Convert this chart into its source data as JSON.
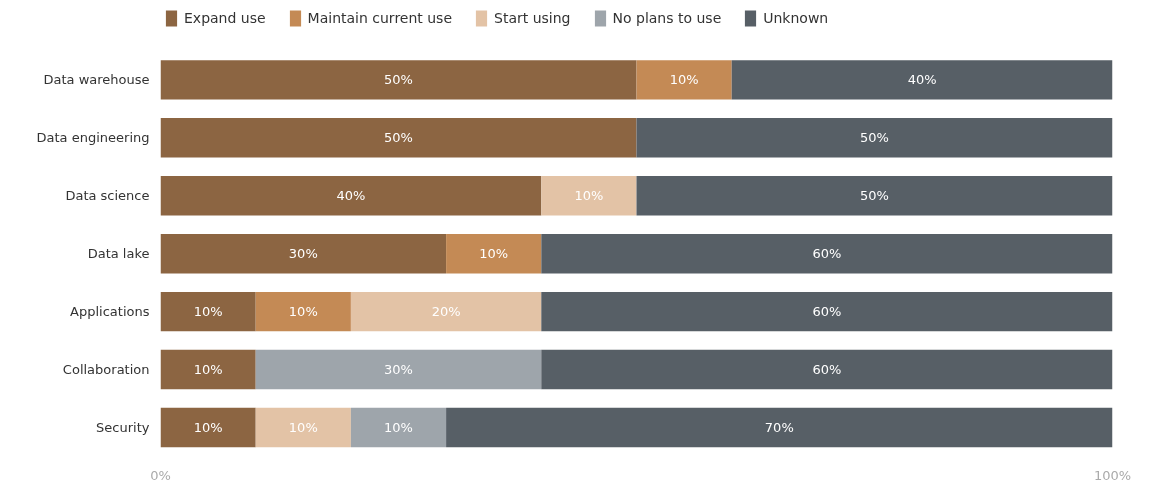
{
  "chart_data": {
    "type": "bar",
    "orientation": "horizontal",
    "stacked": true,
    "categories": [
      "Data warehouse",
      "Data engineering",
      "Data science",
      "Data lake",
      "Applications",
      "Collaboration",
      "Security"
    ],
    "series": [
      {
        "name": "Expand use",
        "color": "#8c6542",
        "values": [
          50,
          50,
          40,
          30,
          10,
          10,
          10
        ],
        "value_labels": [
          "50%",
          "50%",
          "40%",
          "30%",
          "10%",
          "10%",
          "10%"
        ]
      },
      {
        "name": "Maintain current use",
        "color": "#c48a55",
        "values": [
          10,
          0,
          0,
          10,
          10,
          0,
          0
        ],
        "value_labels": [
          "10%",
          null,
          null,
          "10%",
          "10%",
          null,
          null
        ]
      },
      {
        "name": "Start using",
        "color": "#e3c3a6",
        "values": [
          0,
          0,
          10,
          0,
          20,
          0,
          10
        ],
        "value_labels": [
          null,
          null,
          "10%",
          null,
          "20%",
          null,
          "10%"
        ]
      },
      {
        "name": "No plans to use",
        "color": "#9ea5ab",
        "values": [
          0,
          0,
          0,
          0,
          0,
          30,
          10
        ],
        "value_labels": [
          null,
          null,
          null,
          null,
          null,
          "30%",
          "10%"
        ]
      },
      {
        "name": "Unknown",
        "color": "#575f66",
        "values": [
          40,
          50,
          50,
          60,
          60,
          60,
          70
        ],
        "value_labels": [
          "40%",
          "50%",
          "50%",
          "60%",
          "60%",
          "60%",
          "70%"
        ]
      }
    ],
    "xlim": [
      0,
      100
    ],
    "xticks": [
      {
        "value": 0,
        "label": "0%"
      },
      {
        "value": 100,
        "label": "100%"
      }
    ],
    "legend": "top left"
  }
}
